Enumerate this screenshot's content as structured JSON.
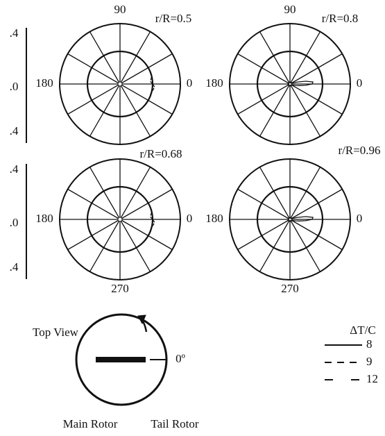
{
  "left_scales": [
    [
      ".4",
      ".0",
      ".4"
    ],
    [
      ".4",
      ".0",
      ".4"
    ]
  ],
  "plots": [
    {
      "title": "r/R=0.5",
      "angle_labels": {
        "top": "90",
        "left": "180",
        "right": "0"
      }
    },
    {
      "title": "r/R=0.8",
      "angle_labels": {
        "top": "90",
        "left": "180",
        "right": "0"
      }
    },
    {
      "title": "r/R=0.68",
      "angle_labels": {
        "bottom": "270",
        "left": "180",
        "right": "0"
      }
    },
    {
      "title": "r/R=0.96",
      "angle_labels": {
        "bottom": "270",
        "left": "180",
        "right": "0"
      }
    }
  ],
  "inset": {
    "title": "Top View",
    "zero_label": "0º",
    "main_rotor": "Main Rotor",
    "tail_rotor": "Tail Rotor"
  },
  "legend": {
    "title": "ΔT/C",
    "entries": [
      "8",
      "9",
      "12"
    ]
  }
}
